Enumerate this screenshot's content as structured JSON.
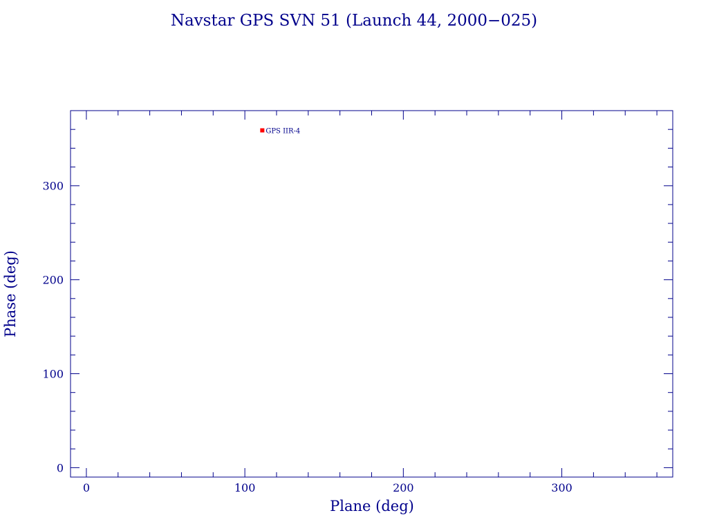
{
  "colors": {
    "axis": "#00008b",
    "text": "#00008b",
    "marker": "#ff0000",
    "background": "#ffffff"
  },
  "chart_data": {
    "type": "scatter",
    "title": "Navstar GPS SVN 51 (Launch 44, 2000−025)",
    "xlabel": "Plane (deg)",
    "ylabel": "Phase (deg)",
    "xlim": [
      -10,
      370
    ],
    "ylim": [
      -10,
      380
    ],
    "x_ticks": [
      0,
      100,
      200,
      300
    ],
    "y_ticks": [
      0,
      100,
      200,
      300
    ],
    "x_minor_step": 20,
    "y_minor_step": 20,
    "grid": false,
    "points": [
      {
        "x": 111,
        "y": 359,
        "label": "GPS IIR-4"
      }
    ]
  }
}
